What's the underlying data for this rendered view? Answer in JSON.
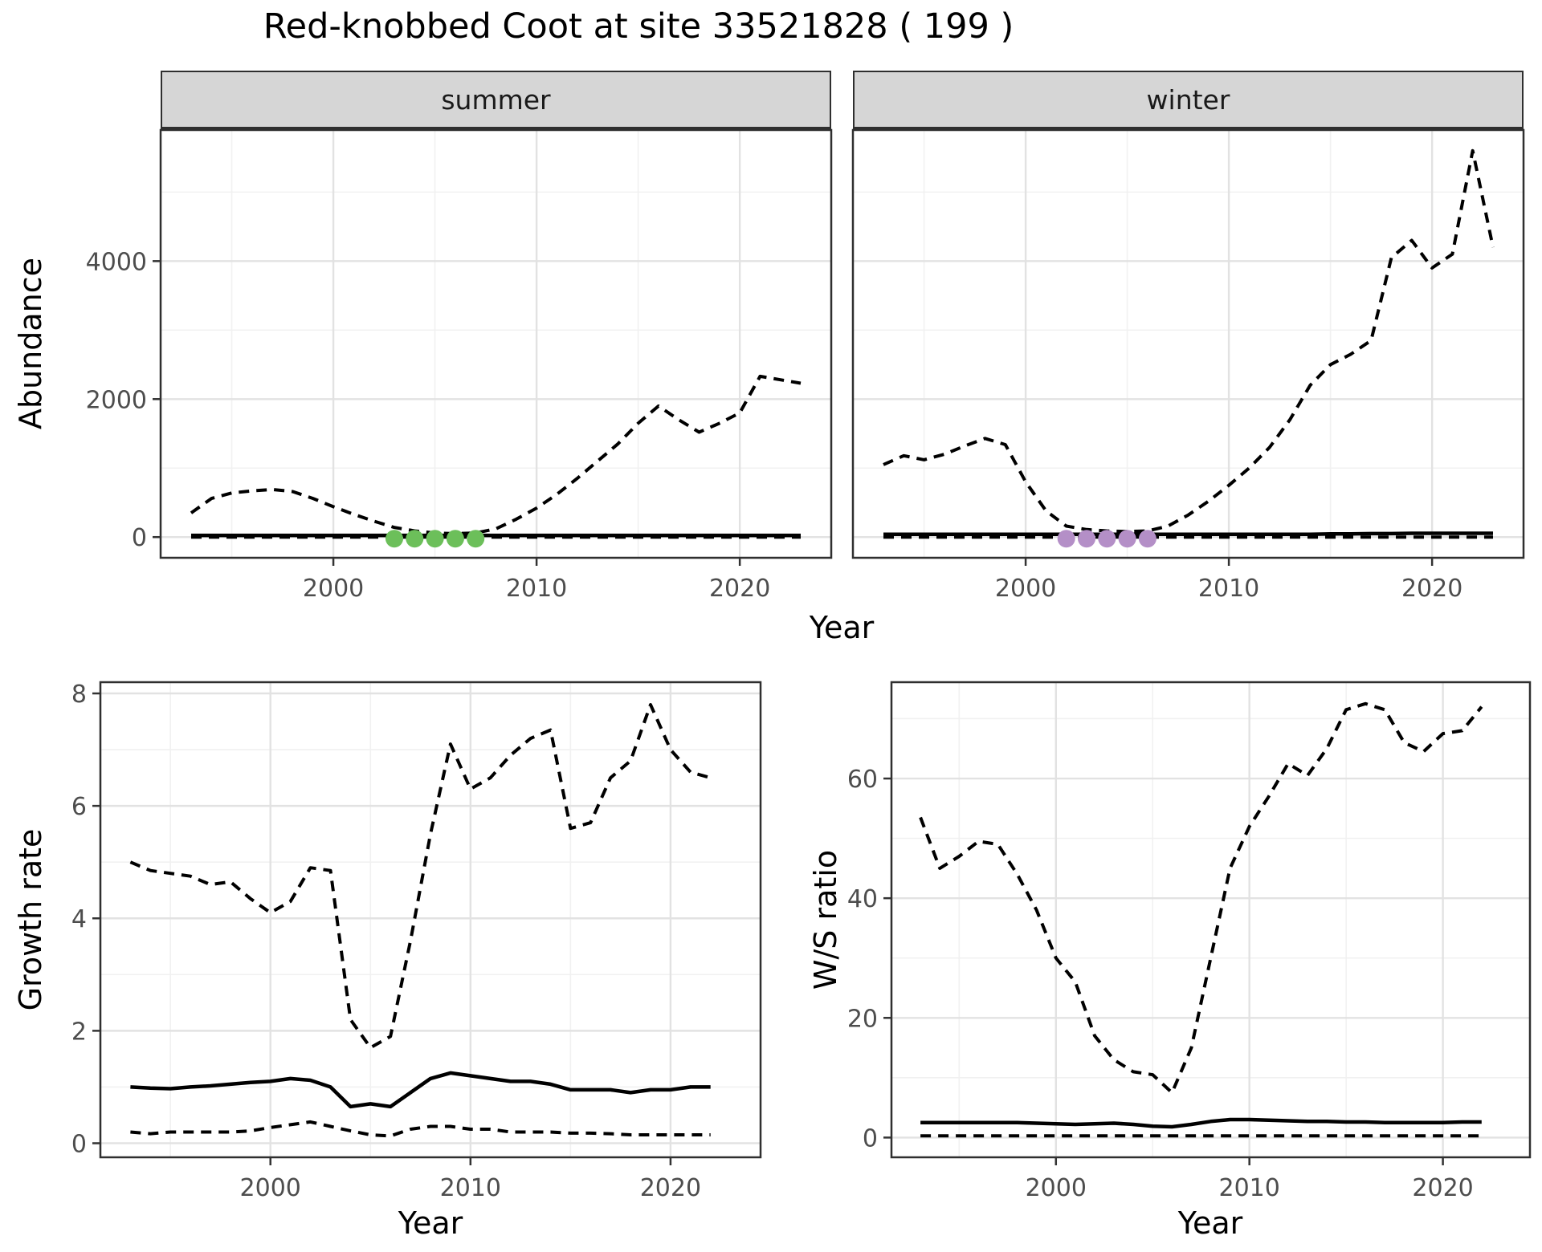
{
  "title": "Red-knobbed Coot at site 33521828 ( 199 )",
  "colors": {
    "summer_point": "#6cbf5a",
    "winter_point": "#b48fc7",
    "line": "#000000",
    "grid_major": "#e2e2e2",
    "grid_minor": "#f1f1f1",
    "strip_fill": "#d6d6d6",
    "panel_border": "#2f2f2f",
    "tick_mark": "#333333",
    "tick_text": "#4d4d4d",
    "axis_title": "#000000"
  },
  "axis_titles": {
    "x": "Year",
    "y_top": "Abundance",
    "y_growth": "Growth rate",
    "y_ws": "W/S ratio"
  },
  "facets": {
    "summer": "summer",
    "winter": "winter"
  },
  "chart_data": [
    {
      "id": "abundance-summer",
      "type": "line",
      "facet_label": "summer",
      "xlabel": "Year",
      "ylabel": "Abundance",
      "x": [
        1993,
        1994,
        1995,
        1996,
        1997,
        1998,
        1999,
        2000,
        2001,
        2002,
        2003,
        2004,
        2005,
        2006,
        2007,
        2008,
        2009,
        2010,
        2011,
        2012,
        2013,
        2014,
        2015,
        2016,
        2017,
        2018,
        2019,
        2020,
        2021,
        2022,
        2023
      ],
      "series": [
        {
          "name": "upper-ci",
          "style": "dashed",
          "values": [
            350,
            560,
            640,
            670,
            690,
            660,
            560,
            440,
            330,
            230,
            140,
            90,
            60,
            50,
            60,
            120,
            260,
            420,
            620,
            850,
            1100,
            1350,
            1650,
            1900,
            1700,
            1520,
            1650,
            1800,
            2330,
            2280,
            2230
          ]
        },
        {
          "name": "median",
          "style": "solid",
          "values": [
            25,
            25,
            25,
            25,
            25,
            25,
            25,
            25,
            25,
            25,
            25,
            25,
            25,
            25,
            25,
            25,
            25,
            25,
            25,
            25,
            25,
            25,
            25,
            25,
            25,
            25,
            25,
            25,
            25,
            25,
            25
          ]
        },
        {
          "name": "lower-ci",
          "style": "dashed",
          "values": [
            0,
            0,
            0,
            0,
            0,
            0,
            0,
            0,
            0,
            0,
            0,
            0,
            0,
            0,
            0,
            0,
            0,
            0,
            0,
            0,
            0,
            0,
            0,
            0,
            0,
            0,
            0,
            0,
            0,
            0,
            0
          ]
        }
      ],
      "highlight_points": {
        "name": "flagged-years",
        "color_key": "summer_point",
        "years": [
          2003,
          2004,
          2005,
          2006,
          2007
        ],
        "value": 0
      },
      "xlim": [
        1991.5,
        2024.5
      ],
      "ylim": [
        -300,
        5900
      ],
      "xticks": {
        "major": [
          2000,
          2010,
          2020
        ],
        "minor": [
          1995,
          2005,
          2015
        ]
      },
      "yticks": {
        "major": [
          0,
          2000,
          4000
        ],
        "minor": [
          1000,
          3000,
          5000
        ]
      }
    },
    {
      "id": "abundance-winter",
      "type": "line",
      "facet_label": "winter",
      "xlabel": "Year",
      "ylabel": "Abundance",
      "x": [
        1993,
        1994,
        1995,
        1996,
        1997,
        1998,
        1999,
        2000,
        2001,
        2002,
        2003,
        2004,
        2005,
        2006,
        2007,
        2008,
        2009,
        2010,
        2011,
        2012,
        2013,
        2014,
        2015,
        2016,
        2017,
        2018,
        2019,
        2020,
        2021,
        2022,
        2023
      ],
      "series": [
        {
          "name": "upper-ci",
          "style": "dashed",
          "values": [
            1050,
            1180,
            1120,
            1200,
            1320,
            1430,
            1340,
            800,
            380,
            160,
            110,
            90,
            80,
            90,
            160,
            320,
            520,
            750,
            1000,
            1300,
            1700,
            2200,
            2500,
            2650,
            2850,
            4050,
            4300,
            3900,
            4100,
            5600,
            4200
          ]
        },
        {
          "name": "median",
          "style": "solid",
          "values": [
            40,
            40,
            40,
            40,
            40,
            40,
            40,
            40,
            40,
            40,
            40,
            40,
            40,
            40,
            40,
            40,
            40,
            40,
            40,
            40,
            40,
            40,
            45,
            45,
            50,
            50,
            55,
            55,
            55,
            55,
            55
          ]
        },
        {
          "name": "lower-ci",
          "style": "dashed",
          "values": [
            0,
            0,
            0,
            0,
            0,
            0,
            0,
            0,
            0,
            0,
            0,
            0,
            0,
            0,
            0,
            0,
            0,
            0,
            0,
            0,
            0,
            0,
            0,
            0,
            0,
            0,
            0,
            0,
            0,
            0,
            0
          ]
        }
      ],
      "highlight_points": {
        "name": "flagged-years",
        "color_key": "winter_point",
        "years": [
          2002,
          2003,
          2004,
          2005,
          2006
        ],
        "value": 0
      },
      "xlim": [
        1991.5,
        2024.5
      ],
      "ylim": [
        -300,
        5900
      ],
      "xticks": {
        "major": [
          2000,
          2010,
          2020
        ],
        "minor": [
          1995,
          2005,
          2015
        ]
      },
      "yticks": {
        "major": [
          0,
          2000,
          4000
        ],
        "minor": [
          1000,
          3000,
          5000
        ]
      }
    },
    {
      "id": "growth-rate",
      "type": "line",
      "facet_label": "",
      "xlabel": "Year",
      "ylabel": "Growth rate",
      "x": [
        1993,
        1994,
        1995,
        1996,
        1997,
        1998,
        1999,
        2000,
        2001,
        2002,
        2003,
        2004,
        2005,
        2006,
        2007,
        2008,
        2009,
        2010,
        2011,
        2012,
        2013,
        2014,
        2015,
        2016,
        2017,
        2018,
        2019,
        2020,
        2021,
        2022
      ],
      "series": [
        {
          "name": "upper-ci",
          "style": "dashed",
          "values": [
            5.0,
            4.85,
            4.8,
            4.75,
            4.6,
            4.65,
            4.35,
            4.1,
            4.3,
            4.9,
            4.85,
            2.2,
            1.7,
            1.9,
            3.6,
            5.5,
            7.1,
            6.3,
            6.5,
            6.9,
            7.2,
            7.35,
            5.6,
            5.7,
            6.5,
            6.8,
            7.8,
            7.0,
            6.6,
            6.5
          ]
        },
        {
          "name": "median",
          "style": "solid",
          "values": [
            1.0,
            0.98,
            0.97,
            1.0,
            1.02,
            1.05,
            1.08,
            1.1,
            1.15,
            1.12,
            1.0,
            0.65,
            0.7,
            0.65,
            0.9,
            1.15,
            1.25,
            1.2,
            1.15,
            1.1,
            1.1,
            1.05,
            0.95,
            0.95,
            0.95,
            0.9,
            0.95,
            0.95,
            1.0,
            1.0
          ]
        },
        {
          "name": "lower-ci",
          "style": "dashed",
          "values": [
            0.2,
            0.17,
            0.2,
            0.2,
            0.2,
            0.2,
            0.22,
            0.28,
            0.33,
            0.38,
            0.3,
            0.22,
            0.15,
            0.13,
            0.25,
            0.3,
            0.3,
            0.25,
            0.25,
            0.2,
            0.2,
            0.2,
            0.18,
            0.18,
            0.17,
            0.15,
            0.15,
            0.15,
            0.15,
            0.15
          ]
        }
      ],
      "xlim": [
        1991.5,
        2024.5
      ],
      "ylim": [
        -0.25,
        8.2
      ],
      "xticks": {
        "major": [
          2000,
          2010,
          2020
        ],
        "minor": [
          1995,
          2005,
          2015
        ]
      },
      "yticks": {
        "major": [
          0,
          2,
          4,
          6,
          8
        ],
        "minor": [
          1,
          3,
          5,
          7
        ]
      }
    },
    {
      "id": "ws-ratio",
      "type": "line",
      "facet_label": "",
      "xlabel": "Year",
      "ylabel": "W/S ratio",
      "x": [
        1993,
        1994,
        1995,
        1996,
        1997,
        1998,
        1999,
        2000,
        2001,
        2002,
        2003,
        2004,
        2005,
        2006,
        2007,
        2008,
        2009,
        2010,
        2011,
        2012,
        2013,
        2014,
        2015,
        2016,
        2017,
        2018,
        2019,
        2020,
        2021,
        2022
      ],
      "series": [
        {
          "name": "upper-ci",
          "style": "dashed",
          "values": [
            53.5,
            45,
            47,
            49.5,
            49,
            44,
            38,
            30,
            26,
            17,
            13,
            11,
            10.5,
            7.5,
            15,
            30,
            45,
            52,
            57,
            62.5,
            60.5,
            65,
            71.5,
            72.5,
            71.5,
            66,
            64.5,
            67.5,
            68,
            72
          ]
        },
        {
          "name": "median",
          "style": "solid",
          "values": [
            2.5,
            2.5,
            2.5,
            2.5,
            2.5,
            2.5,
            2.4,
            2.3,
            2.2,
            2.3,
            2.4,
            2.2,
            1.9,
            1.8,
            2.2,
            2.7,
            3.0,
            3.0,
            2.9,
            2.8,
            2.7,
            2.7,
            2.6,
            2.6,
            2.5,
            2.5,
            2.5,
            2.5,
            2.6,
            2.6
          ]
        },
        {
          "name": "lower-ci",
          "style": "dashed",
          "values": [
            0.3,
            0.3,
            0.3,
            0.3,
            0.3,
            0.3,
            0.3,
            0.3,
            0.3,
            0.3,
            0.3,
            0.3,
            0.3,
            0.3,
            0.3,
            0.3,
            0.3,
            0.3,
            0.3,
            0.3,
            0.3,
            0.3,
            0.3,
            0.3,
            0.3,
            0.3,
            0.3,
            0.3,
            0.3,
            0.3
          ]
        }
      ],
      "xlim": [
        1991.5,
        2024.5
      ],
      "ylim": [
        -3.3,
        76.1
      ],
      "xticks": {
        "major": [
          2000,
          2010,
          2020
        ],
        "minor": [
          1995,
          2005,
          2015
        ]
      },
      "yticks": {
        "major": [
          0,
          20,
          40,
          60
        ],
        "minor": [
          10,
          30,
          50,
          70
        ]
      }
    }
  ]
}
